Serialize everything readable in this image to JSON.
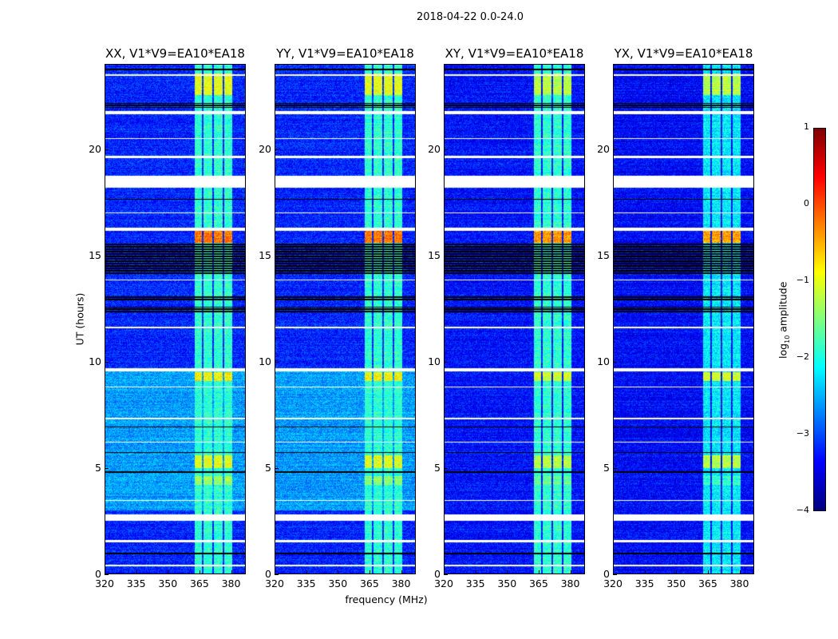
{
  "chart_data": {
    "type": "heatmap",
    "title": "2018-04-22 0.0-24.0",
    "xlabel": "frequency (MHz)",
    "ylabel": "UT (hours)",
    "xlim": [
      320,
      387
    ],
    "ylim": [
      0,
      24
    ],
    "xticks": [
      "320",
      "335",
      "350",
      "365",
      "380"
    ],
    "xtick_values": [
      320,
      335,
      350,
      365,
      380
    ],
    "yticks": [
      "0",
      "5",
      "10",
      "15",
      "20"
    ],
    "ytick_values": [
      0,
      5,
      10,
      15,
      20
    ],
    "panels": [
      {
        "title": "XX, V1*V9=EA10*EA18",
        "background_level": -3.2,
        "raised_background_hours": [
          3,
          9.6
        ],
        "raised_background_level": -2.6
      },
      {
        "title": "YY, V1*V9=EA10*EA18",
        "background_level": -3.2,
        "raised_background_hours": [
          3,
          9.6
        ],
        "raised_background_level": -2.6
      },
      {
        "title": "XY, V1*V9=EA10*EA18",
        "background_level": -3.3,
        "raised_background_hours": [],
        "raised_background_level": -3.3
      },
      {
        "title": "YX, V1*V9=EA10*EA18",
        "background_level": -3.35,
        "raised_background_hours": [],
        "raised_background_level": -3.35
      }
    ],
    "rfi_bands_mhz": [
      [
        362.5,
        366.3
      ],
      [
        367,
        371
      ],
      [
        372,
        376
      ],
      [
        377,
        380.5
      ]
    ],
    "rfi_bright_intervals": [
      {
        "hours": [
          15.6,
          16.3
        ],
        "level": -0.2
      },
      {
        "hours": [
          22.6,
          23.6
        ],
        "level": -1.0
      },
      {
        "hours": [
          5.0,
          5.6
        ],
        "level": -1.0
      },
      {
        "hours": [
          9.1,
          9.5
        ],
        "level": -0.9
      },
      {
        "hours": [
          4.2,
          4.6
        ],
        "level": -1.4
      }
    ],
    "rfi_default_level": -1.9,
    "flagged_hours_white": [
      [
        0.35,
        0.45
      ],
      [
        1.5,
        1.62
      ],
      [
        2.5,
        2.8
      ],
      [
        3.45,
        3.5
      ],
      [
        6.2,
        6.25
      ],
      [
        7.3,
        7.35
      ],
      [
        8.8,
        8.85
      ],
      [
        9.55,
        9.72
      ],
      [
        11.6,
        11.65
      ],
      [
        13.85,
        13.9
      ],
      [
        16.2,
        16.35
      ],
      [
        17.0,
        17.05
      ],
      [
        18.2,
        18.8
      ],
      [
        19.6,
        19.72
      ],
      [
        20.5,
        20.55
      ],
      [
        21.7,
        21.85
      ],
      [
        23.5,
        23.55
      ]
    ],
    "flagged_hours_black": [
      [
        0.9,
        1.0
      ],
      [
        4.75,
        4.85
      ],
      [
        5.7,
        5.75
      ],
      [
        6.9,
        6.95
      ],
      [
        12.3,
        12.6
      ],
      [
        12.85,
        13.1
      ],
      [
        14.1,
        15.6
      ],
      [
        17.6,
        17.7
      ],
      [
        22.0,
        22.2
      ],
      [
        23.75,
        23.85
      ]
    ],
    "colorbar": {
      "label": "log10 amplitude",
      "label_base": "log",
      "label_sub": "10",
      "label_rest": " amplitude",
      "colormap": "jet",
      "range": [
        -4,
        1
      ],
      "ticks": [
        "1",
        "0",
        "−1",
        "−2",
        "−3",
        "−4"
      ],
      "tick_values": [
        1,
        0,
        -1,
        -2,
        -3,
        -4
      ]
    }
  }
}
